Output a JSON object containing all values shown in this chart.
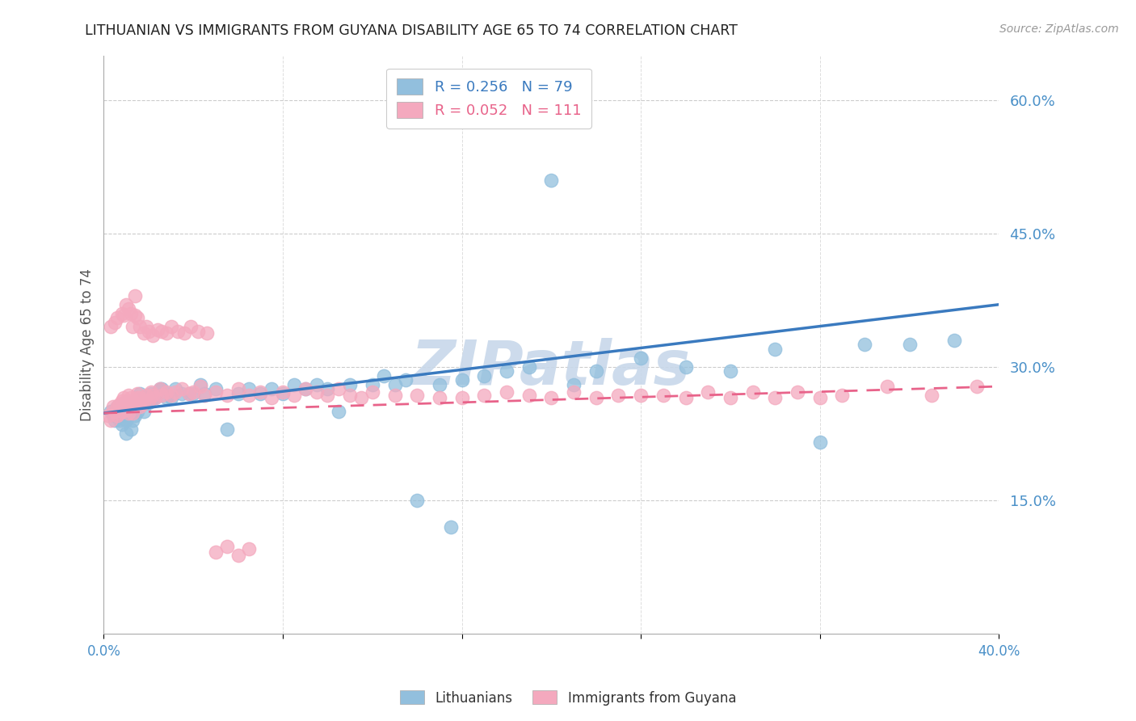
{
  "title": "LITHUANIAN VS IMMIGRANTS FROM GUYANA DISABILITY AGE 65 TO 74 CORRELATION CHART",
  "source": "Source: ZipAtlas.com",
  "ylabel": "Disability Age 65 to 74",
  "xlim": [
    0.0,
    0.4
  ],
  "ylim": [
    0.0,
    0.65
  ],
  "ytick_vals": [
    0.15,
    0.3,
    0.45,
    0.6
  ],
  "ytick_labels": [
    "15.0%",
    "30.0%",
    "45.0%",
    "60.0%"
  ],
  "xtick_vals": [
    0.0,
    0.4
  ],
  "xtick_labels": [
    "0.0%",
    "40.0%"
  ],
  "blue_R": 0.256,
  "blue_N": 79,
  "pink_R": 0.052,
  "pink_N": 111,
  "blue_color": "#92bfdd",
  "pink_color": "#f4a9be",
  "blue_line_color": "#3a7abf",
  "pink_line_color": "#e8638a",
  "legend_label_blue": "Lithuanians",
  "legend_label_pink": "Immigrants from Guyana",
  "watermark": "ZIPatlas",
  "watermark_color": "#c8d8ea",
  "tick_color": "#4a90c8",
  "blue_line_start_y": 0.248,
  "blue_line_end_y": 0.37,
  "pink_line_start_y": 0.248,
  "pink_line_end_y": 0.278,
  "blue_x": [
    0.003,
    0.004,
    0.005,
    0.006,
    0.006,
    0.007,
    0.007,
    0.008,
    0.008,
    0.009,
    0.009,
    0.01,
    0.01,
    0.01,
    0.011,
    0.011,
    0.012,
    0.012,
    0.013,
    0.013,
    0.014,
    0.014,
    0.015,
    0.015,
    0.016,
    0.016,
    0.017,
    0.018,
    0.018,
    0.019,
    0.02,
    0.021,
    0.022,
    0.023,
    0.025,
    0.026,
    0.028,
    0.03,
    0.032,
    0.035,
    0.038,
    0.04,
    0.043,
    0.045,
    0.05,
    0.055,
    0.06,
    0.065,
    0.07,
    0.075,
    0.08,
    0.085,
    0.09,
    0.095,
    0.1,
    0.105,
    0.11,
    0.12,
    0.125,
    0.13,
    0.135,
    0.14,
    0.15,
    0.155,
    0.16,
    0.17,
    0.18,
    0.19,
    0.2,
    0.21,
    0.22,
    0.24,
    0.26,
    0.28,
    0.3,
    0.32,
    0.34,
    0.36,
    0.38
  ],
  "blue_y": [
    0.25,
    0.245,
    0.24,
    0.245,
    0.255,
    0.24,
    0.25,
    0.235,
    0.25,
    0.245,
    0.255,
    0.225,
    0.24,
    0.26,
    0.245,
    0.255,
    0.23,
    0.25,
    0.24,
    0.26,
    0.245,
    0.26,
    0.25,
    0.265,
    0.255,
    0.27,
    0.26,
    0.25,
    0.265,
    0.26,
    0.26,
    0.27,
    0.265,
    0.265,
    0.275,
    0.275,
    0.265,
    0.265,
    0.275,
    0.27,
    0.27,
    0.27,
    0.28,
    0.27,
    0.275,
    0.23,
    0.27,
    0.275,
    0.27,
    0.275,
    0.27,
    0.28,
    0.275,
    0.28,
    0.275,
    0.25,
    0.28,
    0.28,
    0.29,
    0.28,
    0.285,
    0.15,
    0.28,
    0.12,
    0.285,
    0.29,
    0.295,
    0.3,
    0.51,
    0.28,
    0.295,
    0.31,
    0.3,
    0.295,
    0.32,
    0.215,
    0.325,
    0.325,
    0.33
  ],
  "pink_x": [
    0.002,
    0.003,
    0.004,
    0.005,
    0.006,
    0.006,
    0.007,
    0.007,
    0.008,
    0.008,
    0.009,
    0.009,
    0.01,
    0.01,
    0.011,
    0.011,
    0.012,
    0.012,
    0.013,
    0.013,
    0.014,
    0.014,
    0.015,
    0.015,
    0.016,
    0.016,
    0.017,
    0.018,
    0.019,
    0.02,
    0.021,
    0.022,
    0.023,
    0.025,
    0.026,
    0.028,
    0.03,
    0.032,
    0.035,
    0.038,
    0.04,
    0.043,
    0.045,
    0.05,
    0.055,
    0.06,
    0.065,
    0.07,
    0.075,
    0.08,
    0.085,
    0.09,
    0.095,
    0.1,
    0.105,
    0.11,
    0.115,
    0.12,
    0.13,
    0.14,
    0.15,
    0.16,
    0.17,
    0.18,
    0.19,
    0.2,
    0.21,
    0.22,
    0.23,
    0.24,
    0.25,
    0.26,
    0.27,
    0.28,
    0.29,
    0.3,
    0.31,
    0.32,
    0.33,
    0.35,
    0.37,
    0.39,
    0.003,
    0.005,
    0.006,
    0.008,
    0.009,
    0.01,
    0.011,
    0.012,
    0.013,
    0.014,
    0.015,
    0.016,
    0.018,
    0.019,
    0.02,
    0.022,
    0.024,
    0.026,
    0.028,
    0.03,
    0.033,
    0.036,
    0.039,
    0.042,
    0.046,
    0.05,
    0.055,
    0.06,
    0.065
  ],
  "pink_y": [
    0.245,
    0.24,
    0.255,
    0.25,
    0.245,
    0.255,
    0.248,
    0.258,
    0.25,
    0.262,
    0.255,
    0.265,
    0.252,
    0.262,
    0.248,
    0.268,
    0.255,
    0.265,
    0.248,
    0.262,
    0.38,
    0.258,
    0.265,
    0.27,
    0.255,
    0.265,
    0.258,
    0.26,
    0.268,
    0.262,
    0.272,
    0.268,
    0.265,
    0.275,
    0.268,
    0.272,
    0.268,
    0.272,
    0.275,
    0.27,
    0.272,
    0.278,
    0.268,
    0.272,
    0.268,
    0.275,
    0.268,
    0.272,
    0.265,
    0.272,
    0.268,
    0.275,
    0.272,
    0.268,
    0.275,
    0.268,
    0.265,
    0.272,
    0.268,
    0.268,
    0.265,
    0.265,
    0.268,
    0.272,
    0.268,
    0.265,
    0.272,
    0.265,
    0.268,
    0.268,
    0.268,
    0.265,
    0.272,
    0.265,
    0.272,
    0.265,
    0.272,
    0.265,
    0.268,
    0.278,
    0.268,
    0.278,
    0.345,
    0.35,
    0.355,
    0.36,
    0.358,
    0.37,
    0.365,
    0.36,
    0.345,
    0.358,
    0.355,
    0.345,
    0.338,
    0.345,
    0.34,
    0.335,
    0.342,
    0.34,
    0.338,
    0.345,
    0.34,
    0.338,
    0.345,
    0.34,
    0.338,
    0.092,
    0.098,
    0.088,
    0.095
  ]
}
